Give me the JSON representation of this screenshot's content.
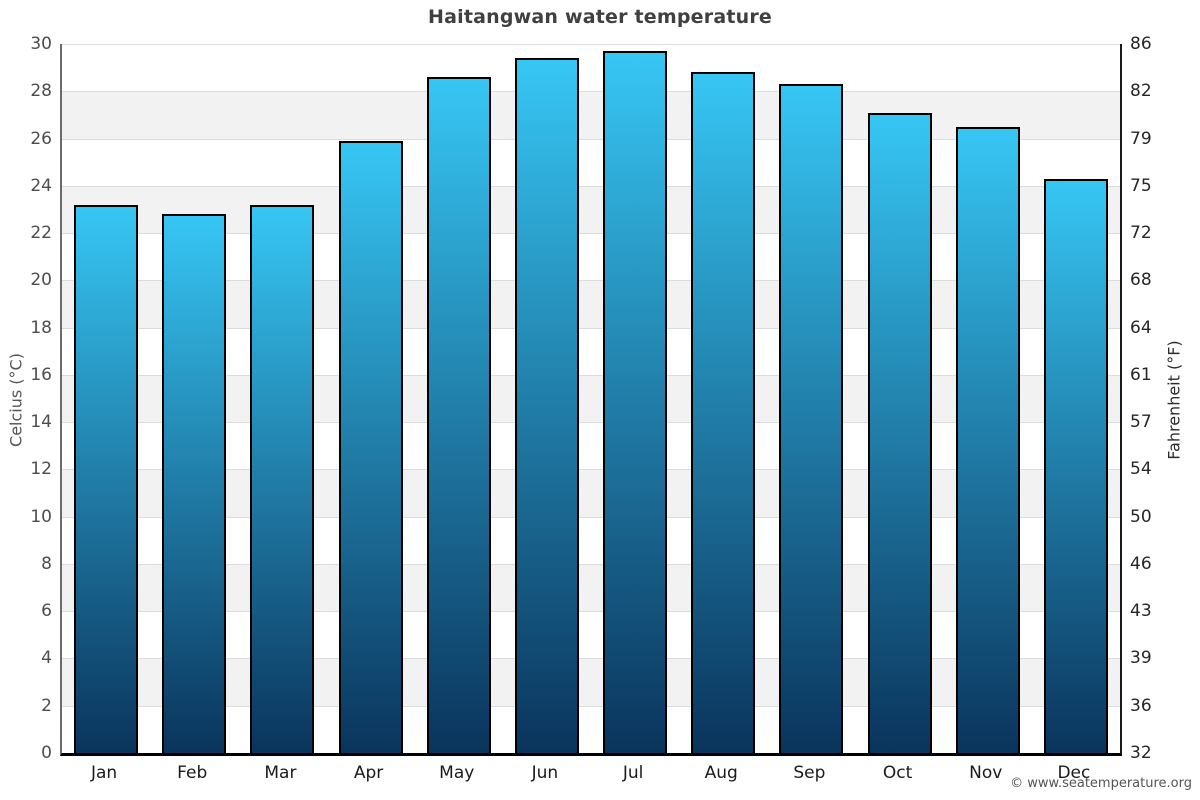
{
  "title": "Haitangwan water temperature",
  "footer": {
    "copyright": "© www.seatemperature.org"
  },
  "chart_data": {
    "type": "bar",
    "title": "Haitangwan water temperature",
    "categories": [
      "Jan",
      "Feb",
      "Mar",
      "Apr",
      "May",
      "Jun",
      "Jul",
      "Aug",
      "Sep",
      "Oct",
      "Nov",
      "Dec"
    ],
    "values": [
      23.2,
      22.8,
      23.2,
      25.9,
      28.6,
      29.4,
      29.7,
      28.8,
      28.3,
      27.1,
      26.5,
      24.3
    ],
    "series_name": "Water temperature (°C)",
    "xlabel": "",
    "ylabel_left": "Celcius (°C)",
    "ylabel_right": "Fahrenheit (°F)",
    "ylim": [
      0,
      30
    ],
    "celsius_ticks": [
      0,
      2,
      4,
      6,
      8,
      10,
      12,
      14,
      16,
      18,
      20,
      22,
      24,
      26,
      28,
      30
    ],
    "fahrenheit_tick_labels": [
      "32",
      "36",
      "39",
      "43",
      "46",
      "50",
      "54",
      "57",
      "61",
      "64",
      "68",
      "72",
      "75",
      "79",
      "82",
      "86"
    ],
    "grid": true,
    "legend": "none",
    "colors": {
      "bar_top": "#37c6f4",
      "bar_bottom": "#0a345c",
      "bar_border": "#000000",
      "stripe": "#f2f2f3",
      "gridline": "#dcdcdc",
      "title_text": "#404040"
    }
  }
}
